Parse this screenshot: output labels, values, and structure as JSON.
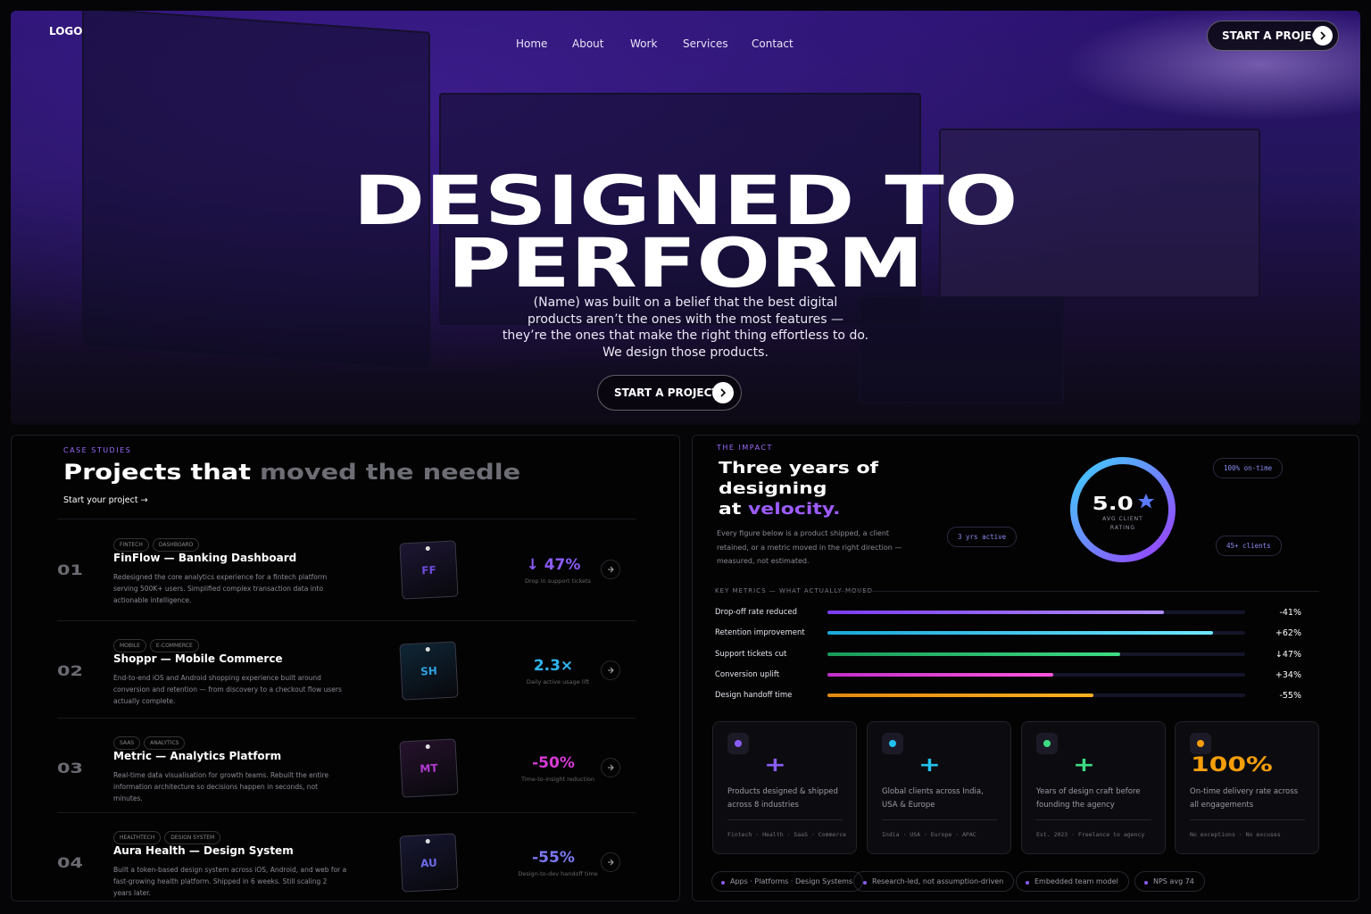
{
  "header": {
    "logo": "LOGO",
    "nav": [
      "Home",
      "About",
      "Work",
      "Services",
      "Contact"
    ],
    "cta": "START A PROJECT"
  },
  "hero": {
    "title_line1": "DESIGNED TO",
    "title_line2": "PERFORM",
    "body": [
      "(Name) was built on a belief that the best digital",
      "products aren’t the ones with the most features —",
      "they’re the ones that make the right thing effortless to do.",
      "We design those products."
    ],
    "cta": "START A PROJECT"
  },
  "case_studies": {
    "eyebrow": "CASE STUDIES",
    "title": "Projects that",
    "title_muted": "moved the needle",
    "link": "Start your project →",
    "projects": [
      {
        "number": "01",
        "tags": [
          "FINTECH",
          "DASHBOARD"
        ],
        "name": "FinFlow — Banking Dashboard",
        "description": "Redesigned the core analytics experience for a fintech platform serving 500K+ users. Simplified complex transaction data into actionable intelligence.",
        "initials": "FF",
        "metric": "↓ 47%",
        "metric_caption": "Drop in support tickets"
      },
      {
        "number": "02",
        "tags": [
          "MOBILE",
          "E-COMMERCE"
        ],
        "name": "Shoppr — Mobile Commerce",
        "description": "End-to-end iOS and Android shopping experience built around conversion and retention — from discovery to a checkout flow users actually complete.",
        "initials": "SH",
        "metric": "2.3×",
        "metric_caption": "Daily active usage lift"
      },
      {
        "number": "03",
        "tags": [
          "SAAS",
          "ANALYTICS"
        ],
        "name": "Metric — Analytics Platform",
        "description": "Real-time data visualisation for growth teams. Rebuilt the entire information architecture so decisions happen in seconds, not minutes.",
        "initials": "MT",
        "metric": "-50%",
        "metric_caption": "Time-to-insight reduction"
      },
      {
        "number": "04",
        "tags": [
          "HEALTHTECH",
          "DESIGN SYSTEM"
        ],
        "name": "Aura Health — Design System",
        "description": "Built a token-based design system across iOS, Android, and web for a fast-growing health platform. Shipped in 6 weeks. Still scaling 2 years later.",
        "initials": "AU",
        "metric": "-55%",
        "metric_caption": "Design-to-dev handoff time"
      }
    ]
  },
  "impact": {
    "eyebrow": "THE IMPACT",
    "title_line1": "Three years of",
    "title_line2": "designing",
    "title_line3": "at",
    "title_accent": "velocity.",
    "description": "Every figure below is a product shipped, a client retained, or a metric moved in the right direction — measured, not estimated.",
    "rating": "5.0",
    "rating_caption": "AVG CLIENT RATING",
    "badges": [
      "100% on-time",
      "3 yrs active",
      "45+ clients"
    ],
    "metrics_heading": "KEY METRICS — WHAT ACTUALLY MOVED",
    "metrics": [
      {
        "label": "Drop-off rate reduced",
        "value": "-41%"
      },
      {
        "label": "Retention improvement",
        "value": "+62%"
      },
      {
        "label": "Support tickets cut",
        "value": "↓47%"
      },
      {
        "label": "Conversion uplift",
        "value": "+34%"
      },
      {
        "label": "Design handoff time",
        "value": "-55%"
      }
    ],
    "stats": [
      {
        "value": "+",
        "description": "Products designed & shipped across 8 industries",
        "footer": "Fintech · Health · SaaS · Commerce"
      },
      {
        "value": "+",
        "description": "Global clients across India, USA & Europe",
        "footer": "India · USA · Europe · APAC"
      },
      {
        "value": "+",
        "description": "Years of design craft before founding the agency",
        "footer": "Est. 2023 · Freelance to agency"
      },
      {
        "value": "100%",
        "description": "On-time delivery rate across all engagements",
        "footer": "No exceptions · No excuses"
      }
    ],
    "pills": [
      "Apps · Platforms · Design Systems",
      "Research-led, not assumption-driven",
      "Embedded team model",
      "NPS avg 74"
    ]
  }
}
